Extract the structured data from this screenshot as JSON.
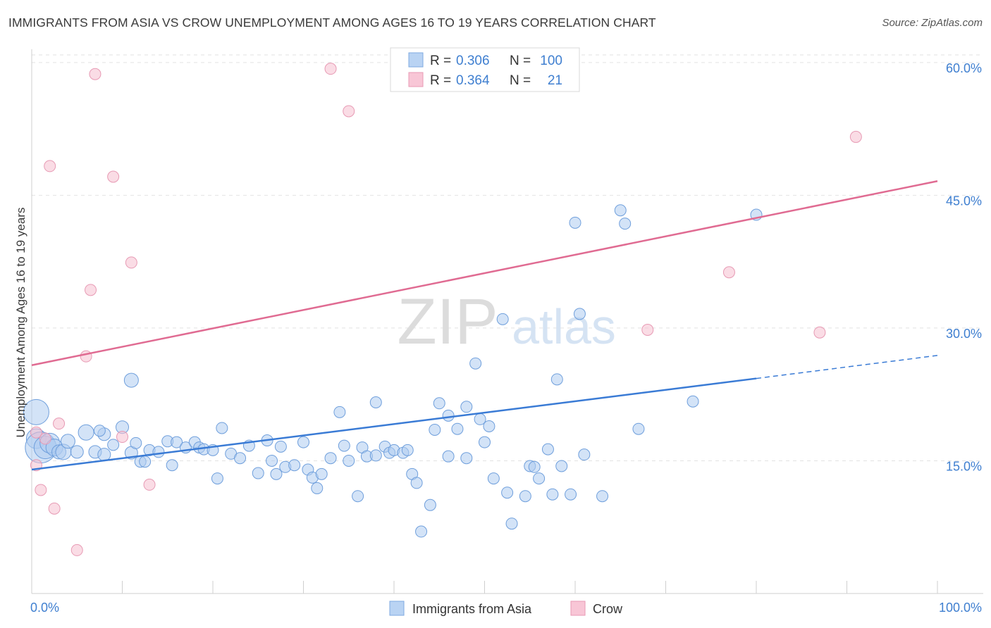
{
  "title": "IMMIGRANTS FROM ASIA VS CROW UNEMPLOYMENT AMONG AGES 16 TO 19 YEARS CORRELATION CHART",
  "source": "Source: ZipAtlas.com",
  "watermark": {
    "zip": "ZIP",
    "atlas": "atlas"
  },
  "colors": {
    "blue": "#3a7bd5",
    "blue_fill": "#aeccf0",
    "pink": "#e06b92",
    "pink_fill": "#f6bfd0",
    "axis_text": "#3f7fd0"
  },
  "legend_top": [
    {
      "r_label": "R =",
      "r_value": "0.306",
      "n_label": "N =",
      "n_value": "100"
    },
    {
      "r_label": "R =",
      "r_value": "0.364",
      "n_label": "N =",
      "n_value": "21"
    }
  ],
  "legend_bottom": [
    "Immigrants from Asia",
    "Crow"
  ],
  "chart_data": {
    "type": "scatter",
    "xlabel": "",
    "ylabel": "Unemployment Among Ages 16 to 19 years",
    "x_tick_labels": [
      "0.0%",
      "100.0%"
    ],
    "y_tick_labels": [
      "15.0%",
      "30.0%",
      "45.0%",
      "60.0%"
    ],
    "xlim": [
      0,
      100
    ],
    "ylim": [
      0,
      61.5
    ],
    "y_ticks": [
      15,
      30,
      45,
      60
    ],
    "grid": true,
    "legend_position": "top-center",
    "series": [
      {
        "name": "Immigrants from Asia",
        "color": "#3a7bd5",
        "trend": {
          "x": [
            0,
            80
          ],
          "y": [
            14.0,
            24.3
          ],
          "dashed_to": [
            100,
            26.9
          ]
        },
        "points": [
          [
            0.5,
            20.5,
            18
          ],
          [
            0.5,
            17.5,
            14
          ],
          [
            1,
            16.5,
            22
          ],
          [
            1.5,
            16.5,
            16
          ],
          [
            2,
            17,
            14
          ],
          [
            2.5,
            16.5,
            12
          ],
          [
            3,
            16,
            10
          ],
          [
            3.5,
            16,
            11
          ],
          [
            4,
            17.2,
            10
          ],
          [
            5,
            16,
            9
          ],
          [
            6,
            18.2,
            11
          ],
          [
            7,
            16,
            9
          ],
          [
            8,
            15.7,
            9
          ],
          [
            9,
            16.8,
            8
          ],
          [
            8,
            18,
            9
          ],
          [
            10,
            18.8,
            9
          ],
          [
            11,
            15.9,
            9
          ],
          [
            11.5,
            17,
            8
          ],
          [
            12,
            14.9,
            8
          ],
          [
            12.5,
            14.9,
            8
          ],
          [
            13,
            16.2,
            8
          ],
          [
            14,
            16,
            8
          ],
          [
            15,
            17.2,
            8
          ],
          [
            15.5,
            14.5,
            8
          ],
          [
            16,
            17.1,
            8
          ],
          [
            17,
            16.5,
            8
          ],
          [
            18,
            17.1,
            8
          ],
          [
            18.5,
            16.5,
            8
          ],
          [
            19,
            16.3,
            8
          ],
          [
            20,
            16.2,
            8
          ],
          [
            20.5,
            13,
            8
          ],
          [
            21,
            18.7,
            8
          ],
          [
            22,
            15.8,
            8
          ],
          [
            23,
            15.3,
            8
          ],
          [
            24,
            16.7,
            8
          ],
          [
            25,
            13.6,
            8
          ],
          [
            26,
            17.3,
            8
          ],
          [
            26.5,
            15,
            8
          ],
          [
            27,
            13.5,
            8
          ],
          [
            27.5,
            16.6,
            8
          ],
          [
            28,
            14.3,
            8
          ],
          [
            29,
            14.5,
            8
          ],
          [
            30,
            17.1,
            8
          ],
          [
            30.5,
            14,
            8
          ],
          [
            31,
            13.1,
            8
          ],
          [
            31.5,
            11.9,
            8
          ],
          [
            32,
            13.5,
            8
          ],
          [
            33,
            15.3,
            8
          ],
          [
            34,
            20.5,
            8
          ],
          [
            34.5,
            16.7,
            8
          ],
          [
            35,
            15,
            8
          ],
          [
            36,
            11,
            8
          ],
          [
            36.5,
            16.5,
            8
          ],
          [
            37,
            15.5,
            8
          ],
          [
            38,
            15.6,
            8
          ],
          [
            38,
            21.6,
            8
          ],
          [
            39,
            16.6,
            8
          ],
          [
            39.5,
            15.9,
            8
          ],
          [
            40,
            16.2,
            8
          ],
          [
            41,
            15.9,
            8
          ],
          [
            41.5,
            16.2,
            8
          ],
          [
            42,
            13.5,
            8
          ],
          [
            42.5,
            12.5,
            8
          ],
          [
            43,
            7,
            8
          ],
          [
            44,
            10,
            8
          ],
          [
            44.5,
            18.5,
            8
          ],
          [
            45,
            21.5,
            8
          ],
          [
            46,
            20.1,
            8
          ],
          [
            46,
            15.5,
            8
          ],
          [
            47,
            18.6,
            8
          ],
          [
            48,
            21.1,
            8
          ],
          [
            48,
            15.3,
            8
          ],
          [
            49,
            26,
            8
          ],
          [
            49.5,
            19.7,
            8
          ],
          [
            50,
            17.1,
            8
          ],
          [
            50.5,
            18.9,
            8
          ],
          [
            51,
            13,
            8
          ],
          [
            52,
            31,
            8
          ],
          [
            52.5,
            11.4,
            8
          ],
          [
            53,
            7.9,
            8
          ],
          [
            54.5,
            11,
            8
          ],
          [
            55,
            14.4,
            8
          ],
          [
            55.5,
            14.3,
            8
          ],
          [
            56,
            13,
            8
          ],
          [
            57,
            16.3,
            8
          ],
          [
            57.5,
            11.2,
            8
          ],
          [
            58,
            24.2,
            8
          ],
          [
            58.5,
            14.4,
            8
          ],
          [
            59.5,
            11.2,
            8
          ],
          [
            60,
            41.9,
            8
          ],
          [
            60.5,
            31.6,
            8
          ],
          [
            61,
            15.7,
            8
          ],
          [
            63,
            11,
            8
          ],
          [
            65,
            43.3,
            8
          ],
          [
            65.5,
            41.8,
            8
          ],
          [
            67,
            18.6,
            8
          ],
          [
            73,
            21.7,
            8
          ],
          [
            80,
            42.8,
            8
          ],
          [
            11,
            24.1,
            10
          ],
          [
            7.5,
            18.4,
            8
          ]
        ]
      },
      {
        "name": "Crow",
        "color": "#e06b92",
        "trend": {
          "x": [
            0,
            100
          ],
          "y": [
            25.8,
            46.6
          ]
        },
        "points": [
          [
            0.5,
            18.2,
            8
          ],
          [
            0.5,
            14.5,
            8
          ],
          [
            1,
            11.7,
            8
          ],
          [
            1.5,
            17.5,
            8
          ],
          [
            2,
            48.3,
            8
          ],
          [
            2.5,
            9.6,
            8
          ],
          [
            3,
            19.2,
            8
          ],
          [
            5,
            4.9,
            8
          ],
          [
            6,
            26.8,
            8
          ],
          [
            6.5,
            34.3,
            8
          ],
          [
            7,
            58.7,
            8
          ],
          [
            9,
            47.1,
            8
          ],
          [
            10,
            17.7,
            8
          ],
          [
            11,
            37.4,
            8
          ],
          [
            13,
            12.3,
            8
          ],
          [
            33,
            59.3,
            8
          ],
          [
            35,
            54.5,
            8
          ],
          [
            68,
            29.8,
            8
          ],
          [
            77,
            36.3,
            8
          ],
          [
            87,
            29.5,
            8
          ],
          [
            91,
            51.6,
            8
          ]
        ]
      }
    ]
  }
}
